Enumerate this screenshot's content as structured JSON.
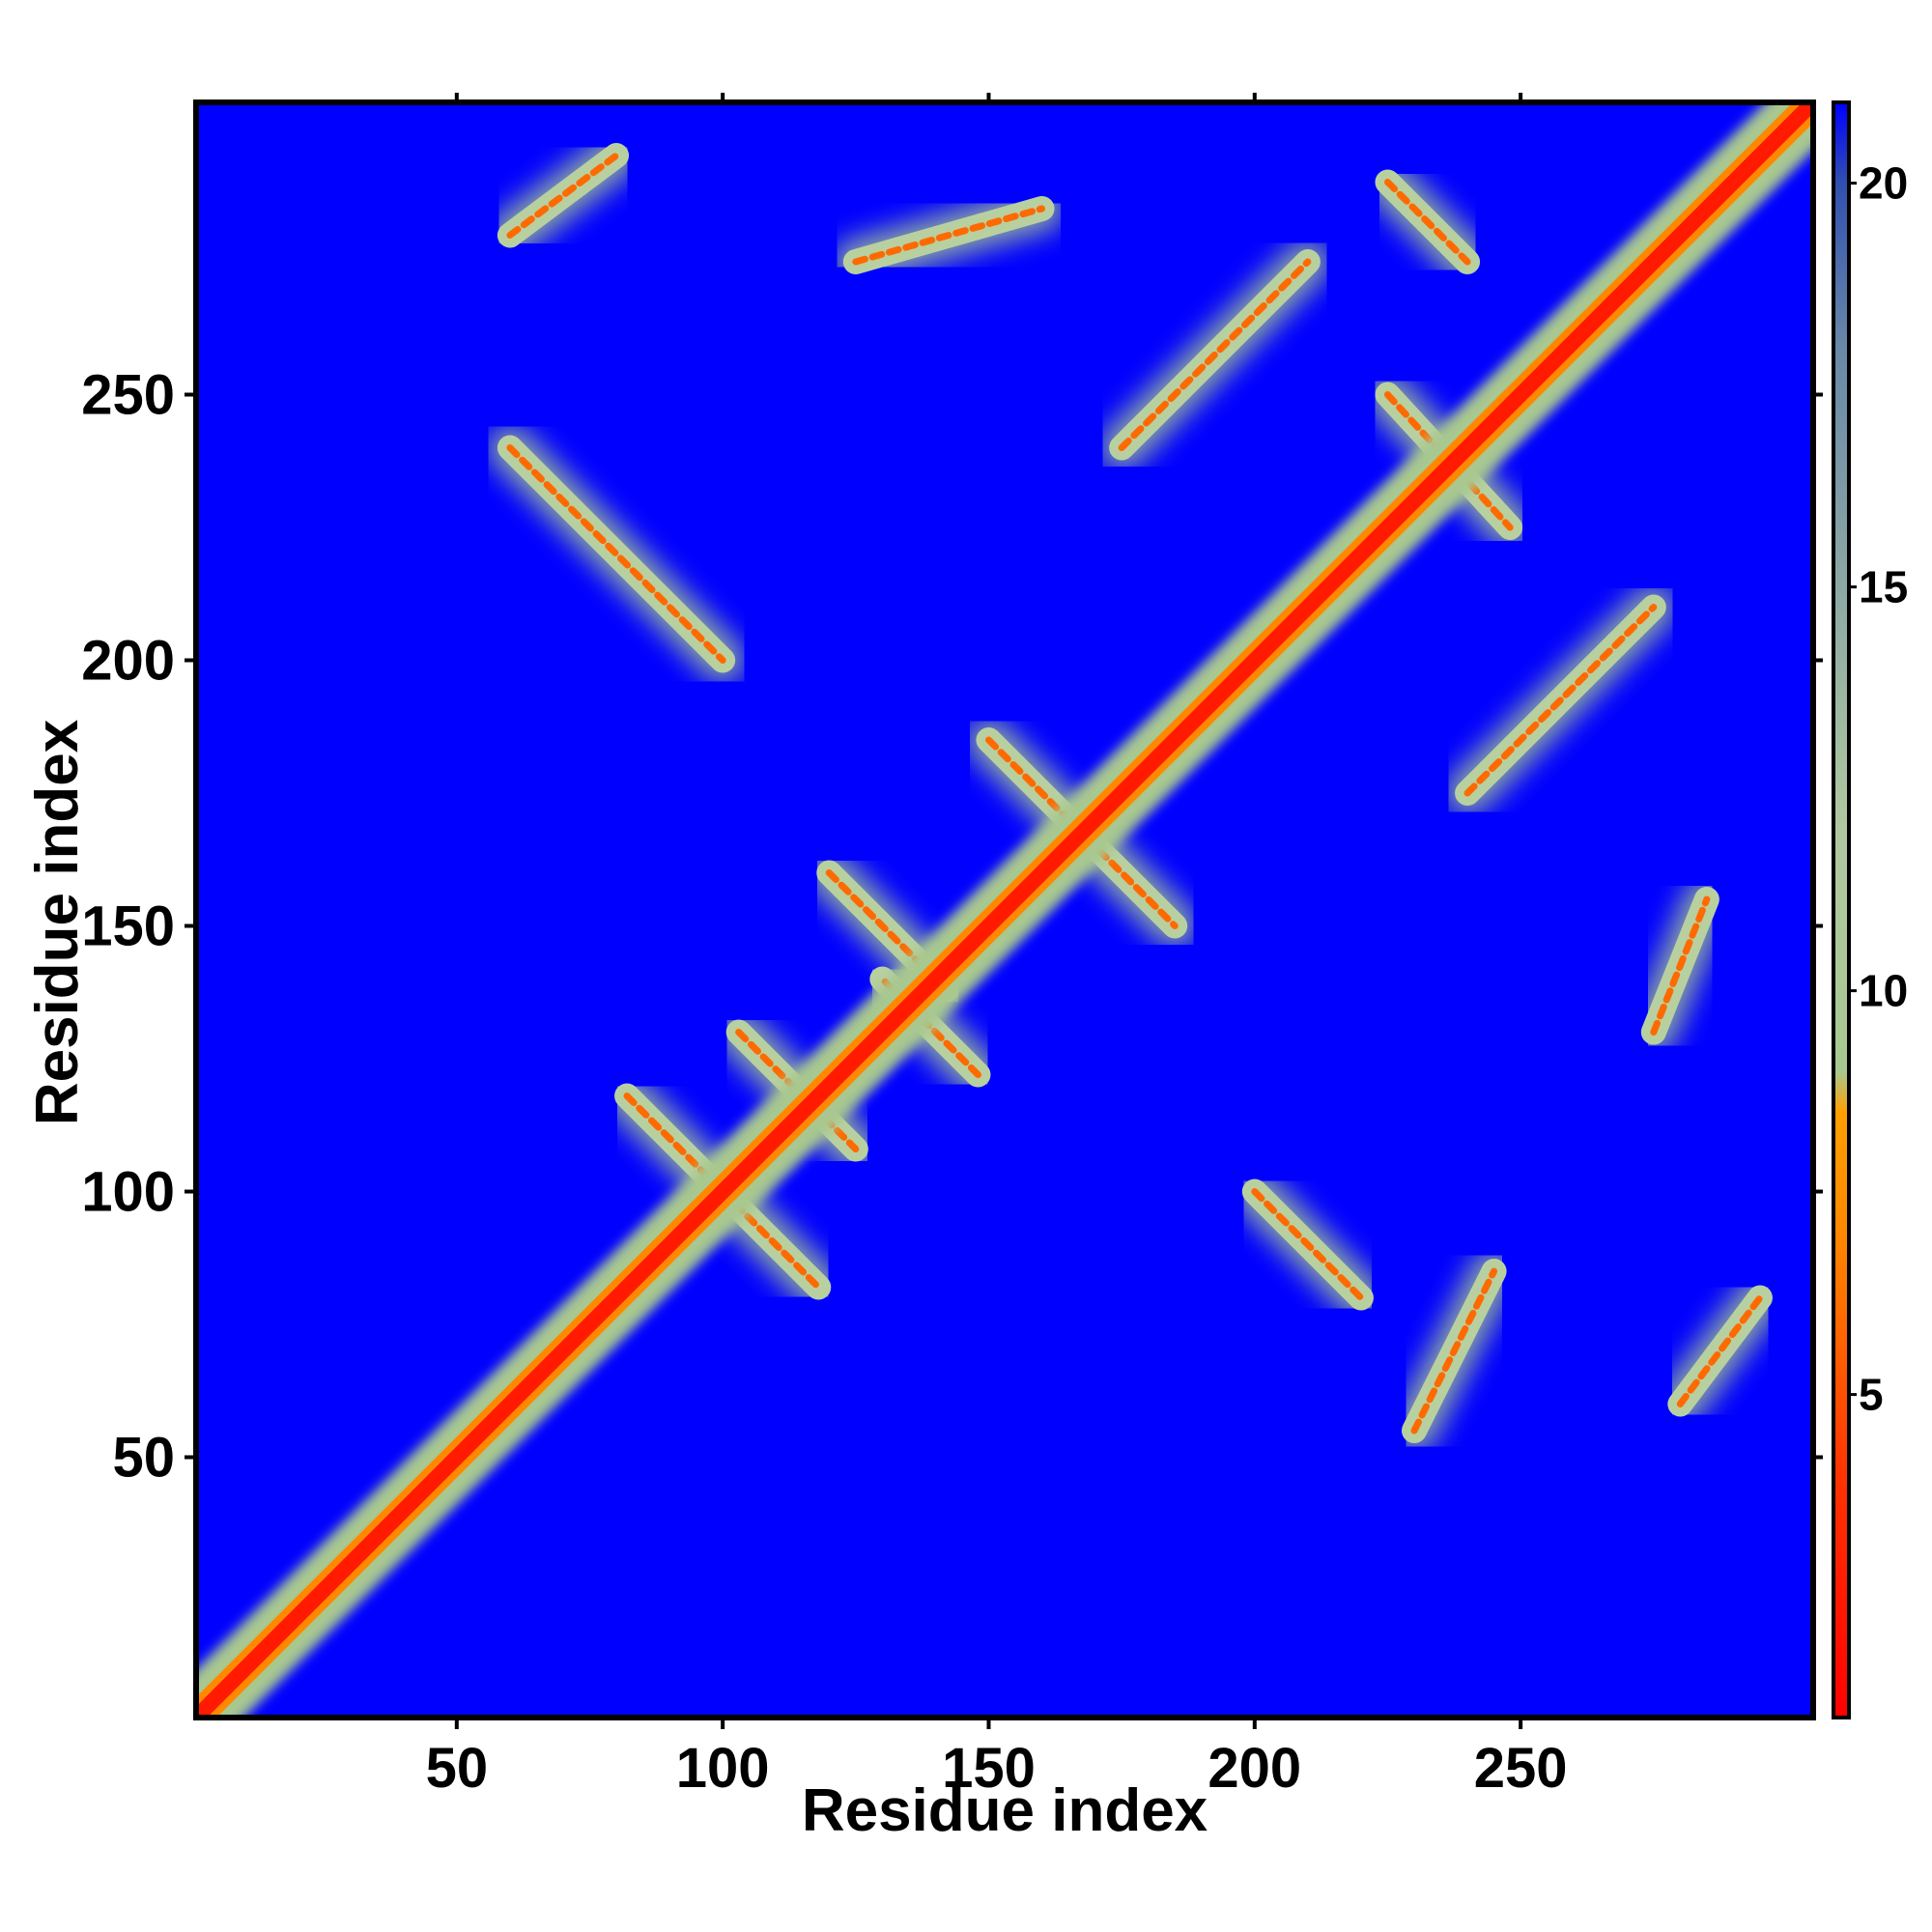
{
  "chart_data": {
    "type": "heatmap",
    "title": "",
    "xlabel": "Residue index",
    "ylabel": "Residue index",
    "xlim": [
      1,
      305
    ],
    "ylim": [
      1,
      305
    ],
    "x_ticks": [
      50,
      100,
      150,
      200,
      250
    ],
    "y_ticks": [
      50,
      100,
      150,
      200,
      250
    ],
    "colorbar": {
      "range": [
        1,
        21
      ],
      "ticks": [
        5,
        10,
        15,
        20
      ],
      "stops": [
        {
          "value": 1,
          "color": "#ff0000"
        },
        {
          "value": 4,
          "color": "#ff3300"
        },
        {
          "value": 7,
          "color": "#ff8800"
        },
        {
          "value": 8.5,
          "color": "#ffa000"
        },
        {
          "value": 9,
          "color": "#a8c890"
        },
        {
          "value": 12,
          "color": "#b0c8a0"
        },
        {
          "value": 18,
          "color": "#6888a8"
        },
        {
          "value": 20,
          "color": "#3050b0"
        },
        {
          "value": 21,
          "color": "#0000ff"
        }
      ]
    },
    "background_color": "#0000ff",
    "diagonal_color": "#ff1a00",
    "contact_bands": [
      {
        "type": "anti",
        "from": [
          100,
          100
        ],
        "to": [
          118,
          82
        ]
      },
      {
        "type": "anti",
        "from": [
          82,
          118
        ],
        "to": [
          100,
          100
        ]
      },
      {
        "type": "anti",
        "from": [
          103,
          130
        ],
        "to": [
          125,
          108
        ]
      },
      {
        "type": "anti",
        "from": [
          120,
          160
        ],
        "to": [
          142,
          138
        ]
      },
      {
        "type": "anti",
        "from": [
          148,
          122
        ],
        "to": [
          130,
          140
        ]
      },
      {
        "type": "anti",
        "from": [
          150,
          185
        ],
        "to": [
          185,
          150
        ]
      },
      {
        "type": "anti",
        "from": [
          200,
          100
        ],
        "to": [
          220,
          80
        ]
      },
      {
        "type": "anti",
        "from": [
          225,
          250
        ],
        "to": [
          248,
          225
        ]
      },
      {
        "type": "anti",
        "from": [
          60,
          240
        ],
        "to": [
          100,
          200
        ]
      },
      {
        "type": "anti",
        "from": [
          225,
          290
        ],
        "to": [
          240,
          275
        ]
      },
      {
        "type": "parallel",
        "from": [
          175,
          240
        ],
        "to": [
          210,
          275
        ]
      },
      {
        "type": "parallel",
        "from": [
          240,
          175
        ],
        "to": [
          275,
          210
        ]
      },
      {
        "type": "parallel",
        "from": [
          60,
          280
        ],
        "to": [
          80,
          295
        ]
      },
      {
        "type": "parallel",
        "from": [
          280,
          60
        ],
        "to": [
          295,
          80
        ]
      },
      {
        "type": "parallel",
        "from": [
          125,
          275
        ],
        "to": [
          160,
          285
        ]
      },
      {
        "type": "parallel",
        "from": [
          230,
          55
        ],
        "to": [
          245,
          85
        ]
      },
      {
        "type": "parallel",
        "from": [
          275,
          130
        ],
        "to": [
          285,
          155
        ]
      }
    ]
  }
}
